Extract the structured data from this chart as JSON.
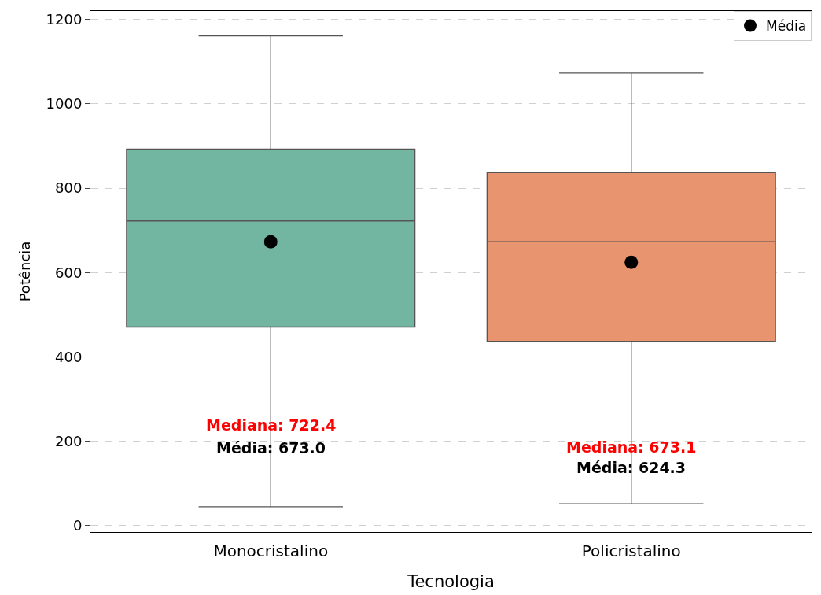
{
  "chart_data": {
    "type": "box",
    "xlabel": "Tecnologia",
    "ylabel": "Potência",
    "categories": [
      "Monocristalino",
      "Policristalino"
    ],
    "boxes": [
      {
        "low": 45,
        "q1": 471,
        "median": 722.4,
        "q3": 893,
        "high": 1161
      },
      {
        "low": 52,
        "q1": 437,
        "median": 673.1,
        "q3": 837,
        "high": 1073
      }
    ],
    "colors": [
      "#72b6a1",
      "#e8956f"
    ],
    "series": [
      {
        "type": "scatter",
        "name": "Média",
        "color": "#000000",
        "x": [
          "Monocristalino",
          "Policristalino"
        ],
        "values": [
          673.0,
          624.3
        ]
      }
    ],
    "annotations": [
      {
        "text": "Mediana: 722.4",
        "x": "Monocristalino",
        "y": 239
      },
      {
        "text": "Média: 673.0",
        "x": "Monocristalino",
        "y": 185
      },
      {
        "text": "Mediana: 673.1",
        "x": "Policristalino",
        "y": 187
      },
      {
        "text": "Média: 624.3",
        "x": "Policristalino",
        "y": 138
      }
    ],
    "ylim": [
      -15,
      1220
    ],
    "yticks": [
      0,
      200,
      400,
      600,
      800,
      1000,
      1200
    ],
    "grid": "y",
    "legend": "top right",
    "marker": "circle"
  }
}
